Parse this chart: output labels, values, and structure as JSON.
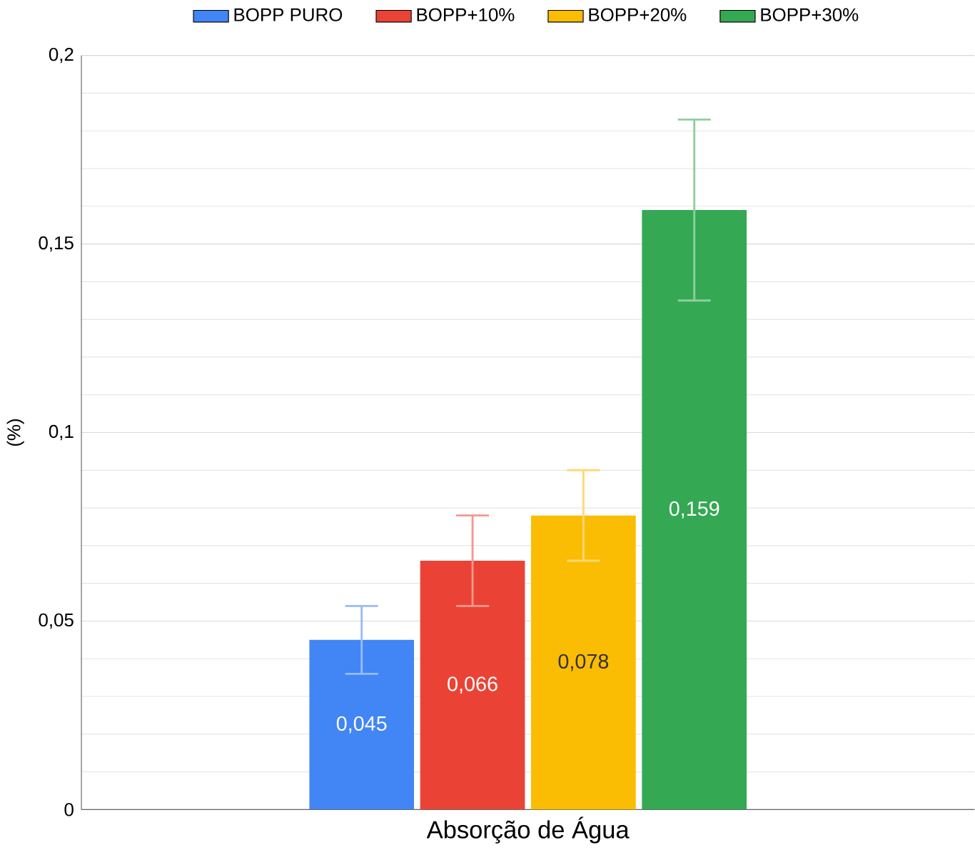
{
  "chart_data": {
    "type": "bar",
    "categories": [
      "Absorção de Água"
    ],
    "ylabel": "(%)",
    "ylim": [
      0,
      0.2
    ],
    "yticks": [
      0,
      {
        "value": 0.05,
        "label": "0,05"
      },
      {
        "value": 0.1,
        "label": "0,1"
      },
      {
        "value": 0.15,
        "label": "0,15"
      },
      {
        "value": 0.2,
        "label": "0,2"
      }
    ],
    "grid": "y",
    "legend": "top",
    "series": [
      {
        "name": "BOPP PURO",
        "color": "#4285f4",
        "values": [
          0.045
        ],
        "errors": [
          0.009
        ],
        "value_labels": [
          "0,045"
        ]
      },
      {
        "name": "BOPP+10%",
        "color": "#ea4335",
        "values": [
          0.066
        ],
        "errors": [
          0.012
        ],
        "value_labels": [
          "0,066"
        ]
      },
      {
        "name": "BOPP+20%",
        "color": "#fbbc04",
        "values": [
          0.078
        ],
        "errors": [
          0.012
        ],
        "value_labels": [
          "0,078"
        ]
      },
      {
        "name": "BOPP+30%",
        "color": "#34a853",
        "values": [
          0.159
        ],
        "errors": [
          0.024
        ],
        "value_labels": [
          "0,159"
        ]
      }
    ]
  }
}
